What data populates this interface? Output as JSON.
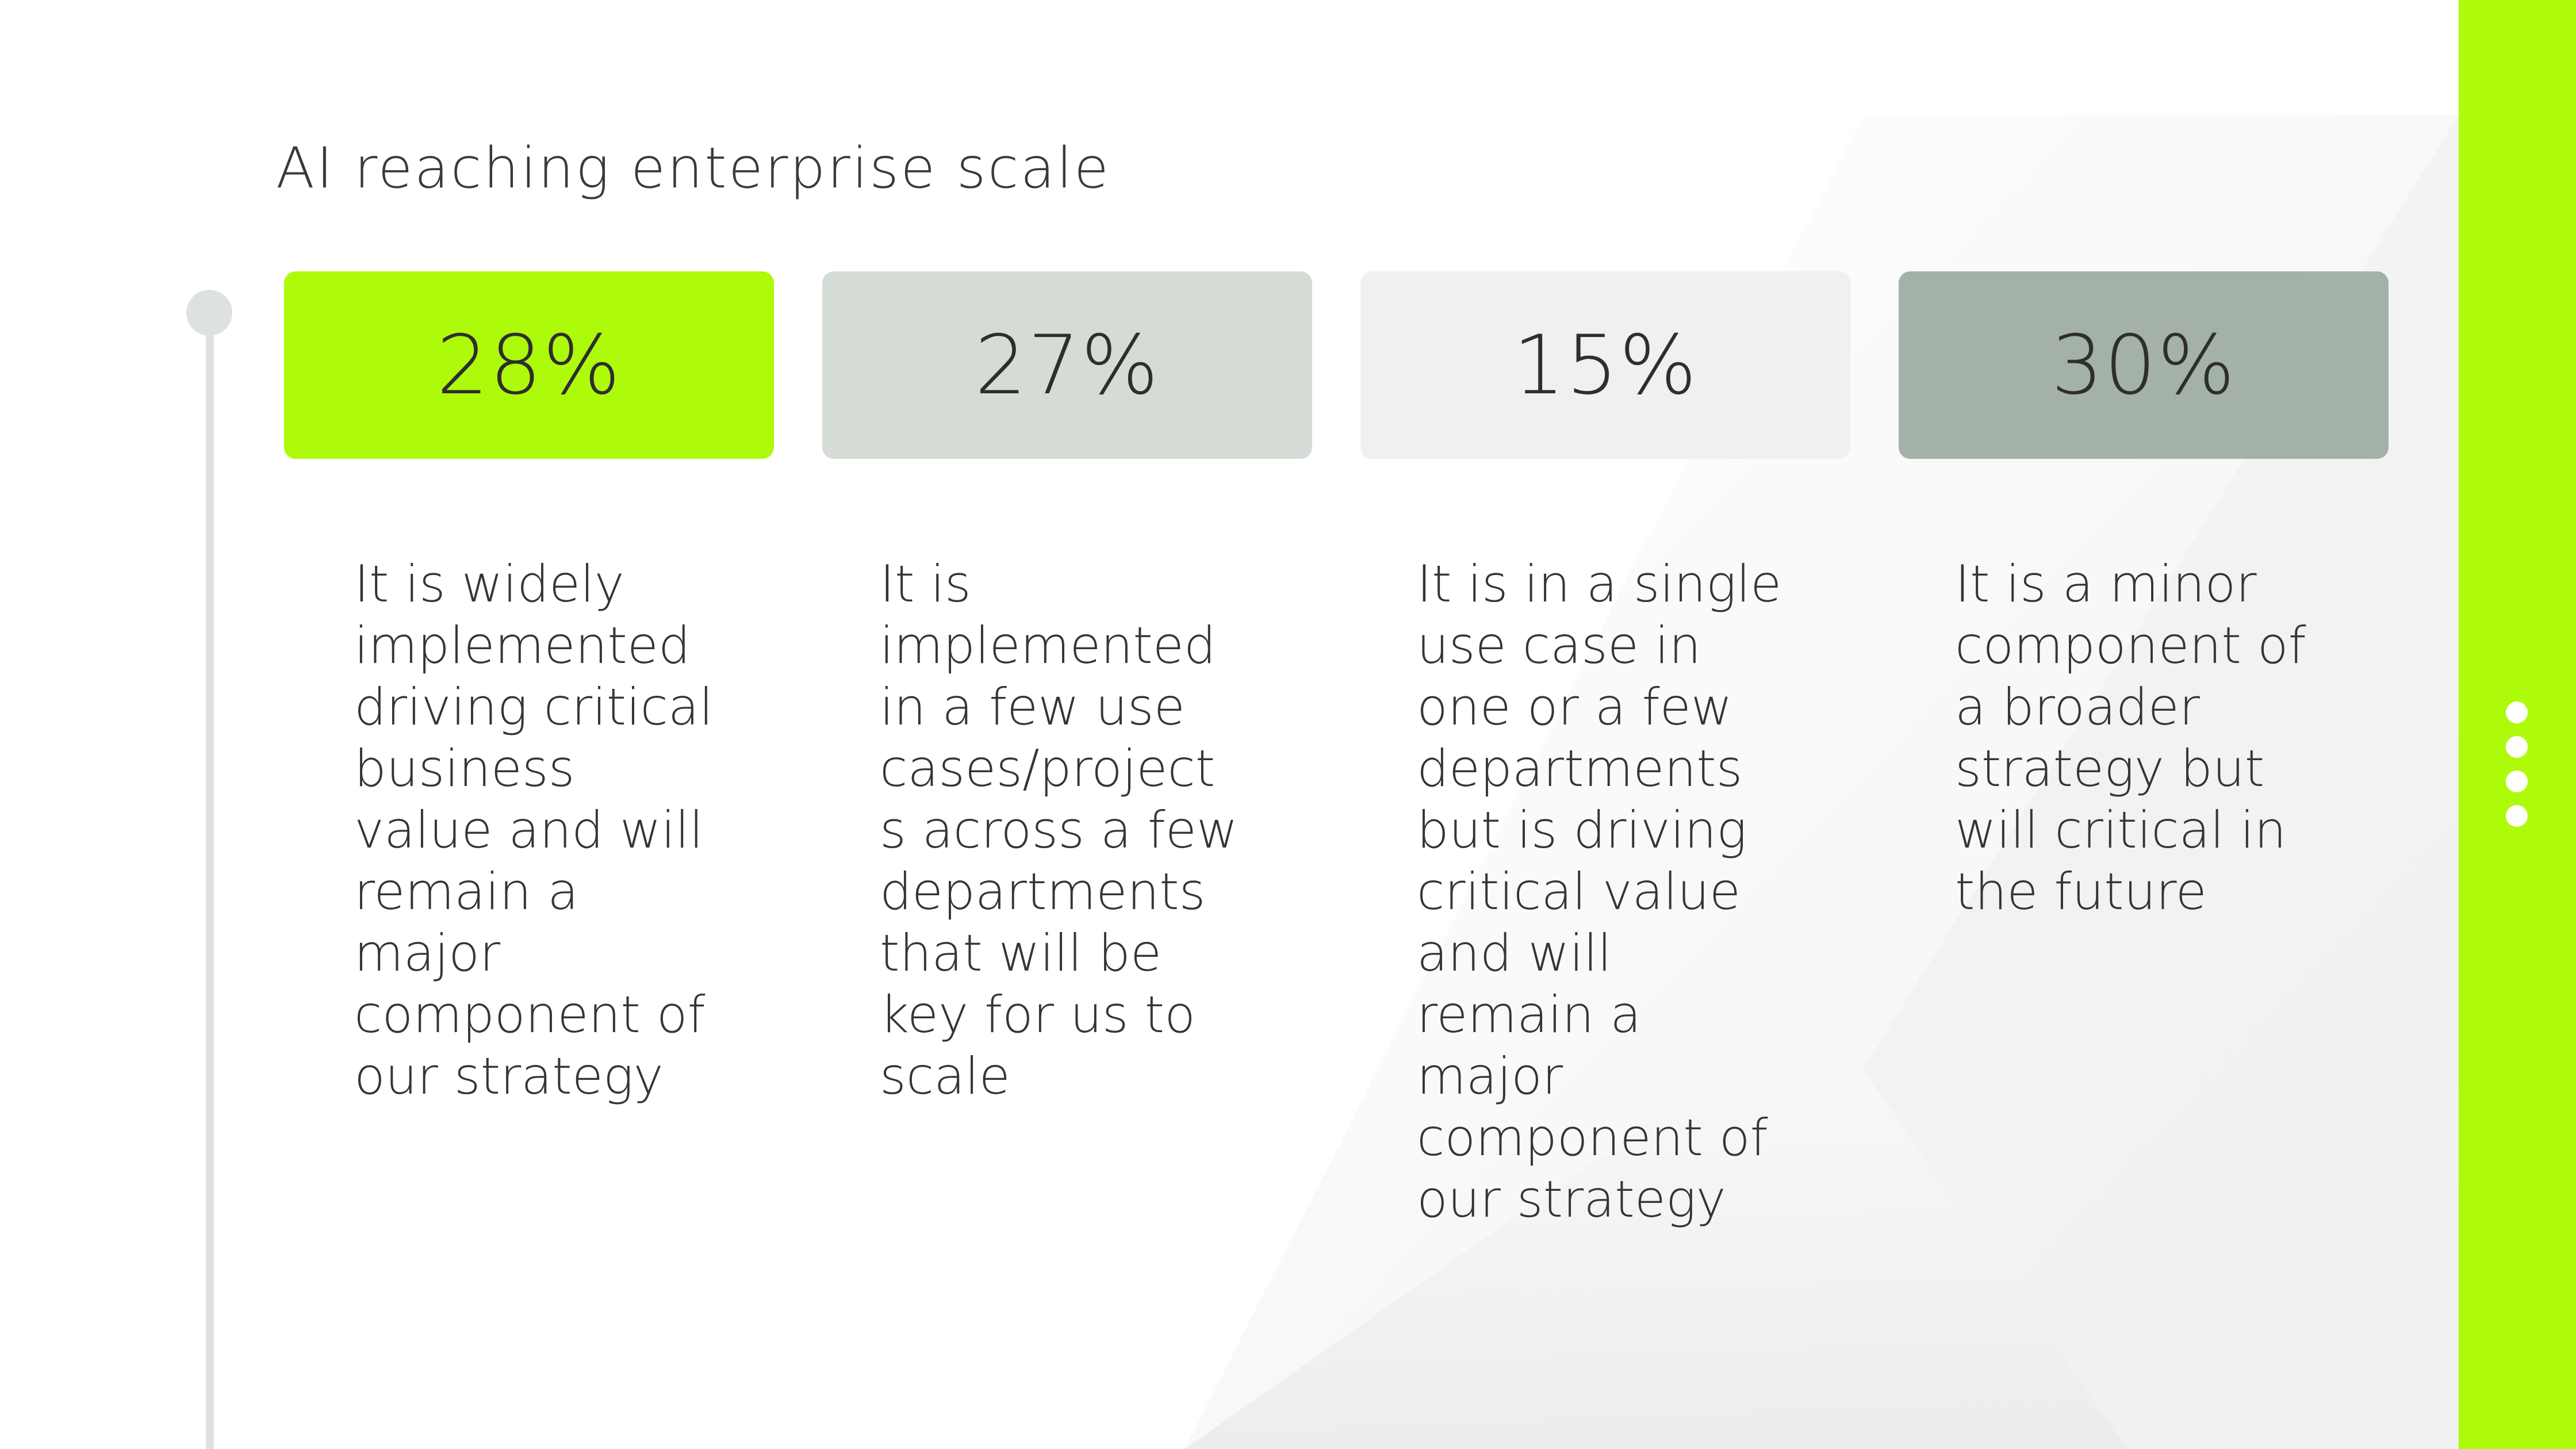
{
  "slide": {
    "title": "AI reaching enterprise scale"
  },
  "colors": {
    "accent": "#aefa0b",
    "box_1": "#aefa0b",
    "box_2": "#d5dcd6",
    "box_3": "#eef1ee",
    "box_4": "#a4b1a6",
    "timeline": "#dde2de"
  },
  "stats": [
    {
      "value": "28%",
      "description": "It is widely implemented driving critical business value and will remain a major component of our strategy"
    },
    {
      "value": "27%",
      "description": "It is implemented in a few use cases/project s across a few departments that will be key for us to scale"
    },
    {
      "value": "15%",
      "description": "It is in a single use case in one or a few departments but is driving critical value and will remain a major component of our strategy"
    },
    {
      "value": "30%",
      "description": "It is a minor component of a broader strategy but will critical in the future"
    }
  ],
  "navigation": {
    "dot_icon": "dot-icon",
    "count": 4
  }
}
